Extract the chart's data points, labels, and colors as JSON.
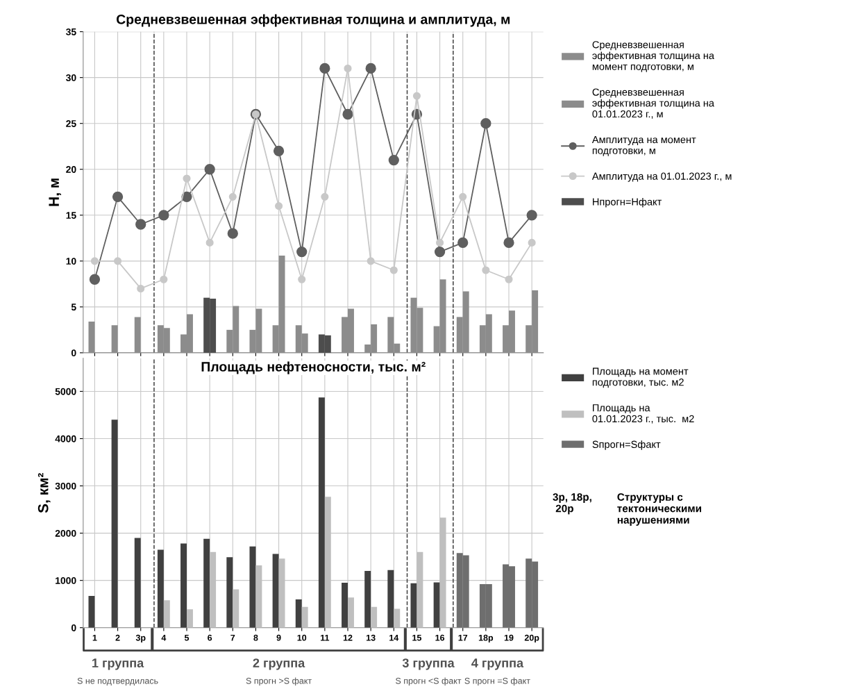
{
  "chart_data": [
    {
      "type": "bar",
      "title": "Средневзвешенная эффективная толщина и амплитуда, м",
      "ylabel": "Н, м",
      "categories": [
        null,
        null,
        null,
        null,
        null,
        null,
        null,
        null,
        null,
        null,
        null,
        null,
        null,
        null,
        null,
        null,
        null,
        null,
        null,
        null
      ],
      "series": [
        {
          "name": "Средневзвешенная\nэффективная толщина на\nмомент подготовки, м",
          "type": "bar",
          "color": "#8c8c8c",
          "colors": [
            "#8c8c8c",
            "#8c8c8c",
            "#8c8c8c",
            "#8c8c8c",
            "#8c8c8c",
            "#4d4d4d",
            "#8c8c8c",
            "#8c8c8c",
            "#8c8c8c",
            "#8c8c8c",
            "#4d4d4d",
            "#8c8c8c",
            "#8c8c8c",
            "#8c8c8c",
            "#8c8c8c",
            "#8c8c8c",
            "#8c8c8c",
            "#8c8c8c",
            "#8c8c8c",
            "#8c8c8c"
          ],
          "values": [
            3.4,
            3,
            3.9,
            3,
            2,
            6,
            2.5,
            2.5,
            3,
            3,
            2,
            3.9,
            0.9,
            3.9,
            6,
            2.9,
            3.9,
            3,
            3,
            3
          ]
        },
        {
          "name": "Средневзвешенная\nэффективная толщина на\n01.01.2023 г., м",
          "type": "bar",
          "color": "#8c8c8c",
          "colors": [
            "#8c8c8c",
            "#8c8c8c",
            "#8c8c8c",
            "#8c8c8c",
            "#8c8c8c",
            "#4d4d4d",
            "#8c8c8c",
            "#8c8c8c",
            "#8c8c8c",
            "#8c8c8c",
            "#4d4d4d",
            "#8c8c8c",
            "#8c8c8c",
            "#8c8c8c",
            "#8c8c8c",
            "#8c8c8c",
            "#8c8c8c",
            "#8c8c8c",
            "#8c8c8c",
            "#8c8c8c"
          ],
          "values": [
            null,
            null,
            null,
            2.7,
            4.2,
            5.9,
            5.1,
            4.8,
            10.6,
            2.1,
            1.9,
            4.8,
            3.1,
            1,
            4.9,
            8,
            6.7,
            4.2,
            4.6,
            6.8
          ]
        },
        {
          "name": "Амплитуда на момент\nподготовки, м",
          "type": "line",
          "color": "#5f5f5f",
          "marker": "circle",
          "line_style": "solid",
          "values": [
            8,
            17,
            14,
            15,
            17,
            20,
            13,
            26,
            22,
            11,
            31,
            26,
            31,
            21,
            26,
            11,
            12,
            25,
            12,
            15
          ]
        },
        {
          "name": "Амплитуда на 01.01.2023 г., м",
          "type": "line",
          "color": "#c8c8c8",
          "marker": "circle",
          "line_style": "solid",
          "values": [
            10,
            10,
            7,
            8,
            19,
            12,
            17,
            26,
            16,
            8,
            17,
            31,
            10,
            9,
            28,
            12,
            17,
            9,
            8,
            12
          ]
        },
        {
          "name": "Нпрогн=Нфакт",
          "type": "bar",
          "color": "#4d4d4d",
          "values": [
            null,
            null,
            null,
            null,
            null,
            null,
            null,
            null,
            null,
            null,
            null,
            null,
            null,
            null,
            null,
            null,
            null,
            null,
            null,
            null
          ]
        }
      ],
      "ylim": [
        0,
        35
      ],
      "yticks": [
        0,
        5,
        10,
        15,
        20,
        25,
        30,
        35
      ],
      "grid": true,
      "legend": "right",
      "tick_labels": "y"
    },
    {
      "type": "bar",
      "title": "Площадь нефтеносности, тыс. м²",
      "ylabel": "S, км²",
      "categories": [
        "1",
        "2",
        "3р",
        "4",
        "5",
        "6",
        "7",
        "8",
        "9",
        "10",
        "11",
        "12",
        "13",
        "14",
        "15",
        "16",
        "17",
        "18р",
        "19",
        "20р"
      ],
      "series": [
        {
          "name": "Площадь на момент\nподготовки, тыс. м2",
          "type": "bar",
          "color": "#404040",
          "colors": [
            "#404040",
            "#404040",
            "#404040",
            "#404040",
            "#404040",
            "#404040",
            "#404040",
            "#404040",
            "#404040",
            "#404040",
            "#404040",
            "#404040",
            "#404040",
            "#404040",
            "#404040",
            "#404040",
            "#6e6e6e",
            "#6e6e6e",
            "#6e6e6e",
            "#6e6e6e"
          ],
          "values": [
            670,
            4400,
            1900,
            1650,
            1780,
            1880,
            1490,
            1720,
            1560,
            600,
            4870,
            950,
            1200,
            1220,
            940,
            960,
            1580,
            920,
            1340,
            1460
          ]
        },
        {
          "name": "Площадь на\n01.01.2023 г., тыс.  м2",
          "type": "bar",
          "color": "#bfbfbf",
          "colors": [
            "#bfbfbf",
            "#bfbfbf",
            "#bfbfbf",
            "#bfbfbf",
            "#bfbfbf",
            "#bfbfbf",
            "#bfbfbf",
            "#bfbfbf",
            "#bfbfbf",
            "#bfbfbf",
            "#bfbfbf",
            "#bfbfbf",
            "#bfbfbf",
            "#bfbfbf",
            "#bfbfbf",
            "#bfbfbf",
            "#6e6e6e",
            "#6e6e6e",
            "#6e6e6e",
            "#6e6e6e"
          ],
          "values": [
            null,
            null,
            null,
            580,
            390,
            1600,
            810,
            1320,
            1460,
            440,
            2770,
            640,
            440,
            400,
            1600,
            2330,
            1530,
            920,
            1300,
            1400
          ]
        },
        {
          "name": "Sпрогн=Sфакт",
          "type": "bar",
          "color": "#6e6e6e",
          "values": [
            null,
            null,
            null,
            null,
            null,
            null,
            null,
            null,
            null,
            null,
            null,
            null,
            null,
            null,
            null,
            null,
            null,
            null,
            null,
            null
          ]
        }
      ],
      "ylim": [
        0,
        5700
      ],
      "yticks": [
        0,
        1000,
        2000,
        3000,
        4000,
        5000
      ],
      "grid": true,
      "legend": "right",
      "annotations": [
        "1 группа",
        "S не подтвердилась",
        "2 группа",
        "S прогн >S факт",
        "3 группа",
        "S прогн <S факт",
        "4 группа",
        "S прогн =S факт",
        "3р, 18р,\n 20р",
        "Структуры с\nтектоническими\nнарушениями"
      ]
    }
  ]
}
